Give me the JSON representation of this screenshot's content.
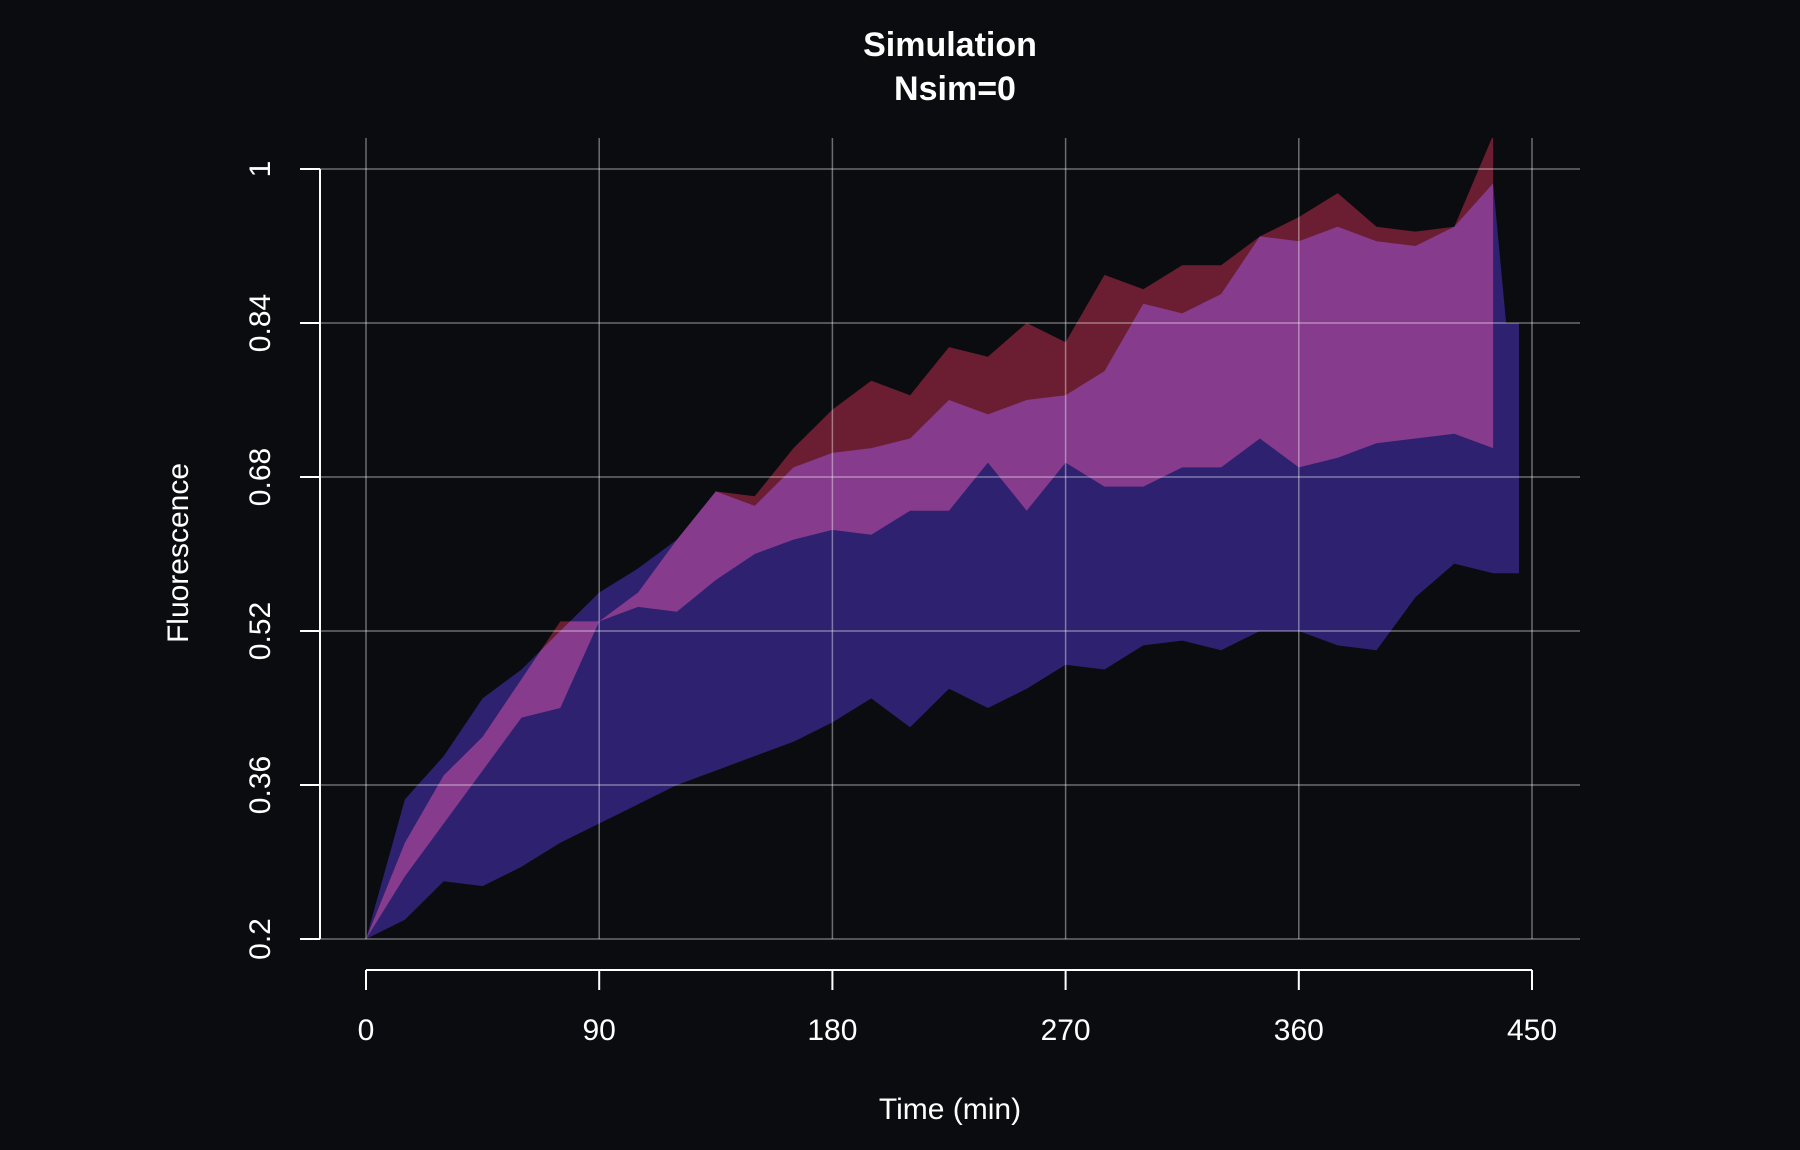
{
  "chart_data": {
    "type": "ribbon",
    "title": "Simulation",
    "subtitle": "Nsim=0",
    "x_label": "Time (min)",
    "y_label": "Fluorescence",
    "xlim": [
      0,
      450
    ],
    "xticks": [
      0,
      90,
      180,
      270,
      360,
      450
    ],
    "ylim": [
      0.2,
      1
    ],
    "yticks": [
      0.2,
      0.36,
      0.52,
      0.68,
      0.84,
      1
    ],
    "grid": true,
    "series": [
      {
        "color": "#2e2170",
        "x": [
          0,
          15,
          30,
          45,
          60,
          75,
          90,
          105,
          120,
          135,
          150,
          165,
          180,
          195,
          210,
          225,
          240,
          255,
          270,
          285,
          300,
          315,
          330,
          345,
          360,
          375,
          390,
          405,
          420,
          435,
          440,
          445
        ],
        "upper": [
          0.2,
          0.345,
          0.39,
          0.45,
          0.48,
          0.52,
          0.56,
          0.585,
          0.615,
          0.665,
          0.65,
          0.69,
          0.705,
          0.71,
          0.72,
          0.76,
          0.745,
          0.76,
          0.765,
          0.79,
          0.86,
          0.85,
          0.87,
          0.93,
          0.925,
          0.94,
          0.925,
          0.92,
          0.94,
          0.985,
          0.84,
          0.84
        ],
        "lower": [
          0.2,
          0.22,
          0.26,
          0.255,
          0.275,
          0.3,
          0.32,
          0.34,
          0.36,
          0.375,
          0.39,
          0.405,
          0.425,
          0.45,
          0.42,
          0.46,
          0.44,
          0.46,
          0.485,
          0.48,
          0.505,
          0.51,
          0.5,
          0.52,
          0.52,
          0.505,
          0.5,
          0.555,
          0.59,
          0.58,
          0.58,
          0.58
        ]
      },
      {
        "color": "#6b1e32",
        "x": [
          0,
          15,
          30,
          45,
          60,
          75,
          90,
          105,
          120,
          135,
          150,
          165,
          180,
          195,
          210,
          225,
          240,
          255,
          270,
          285,
          300,
          315,
          330,
          345,
          360,
          375,
          390,
          405,
          420,
          435
        ],
        "upper": [
          0.2,
          0.3,
          0.37,
          0.41,
          0.47,
          0.53,
          0.53,
          0.56,
          0.615,
          0.665,
          0.66,
          0.71,
          0.75,
          0.78,
          0.765,
          0.815,
          0.805,
          0.84,
          0.82,
          0.89,
          0.875,
          0.9,
          0.9,
          0.93,
          0.95,
          0.975,
          0.94,
          0.935,
          0.94,
          1.035
        ],
        "lower": [
          0.2,
          0.265,
          0.32,
          0.375,
          0.43,
          0.44,
          0.53,
          0.545,
          0.54,
          0.573,
          0.6,
          0.615,
          0.625,
          0.62,
          0.645,
          0.645,
          0.695,
          0.645,
          0.695,
          0.67,
          0.67,
          0.69,
          0.69,
          0.72,
          0.69,
          0.7,
          0.715,
          0.72,
          0.725,
          0.71
        ]
      }
    ]
  }
}
